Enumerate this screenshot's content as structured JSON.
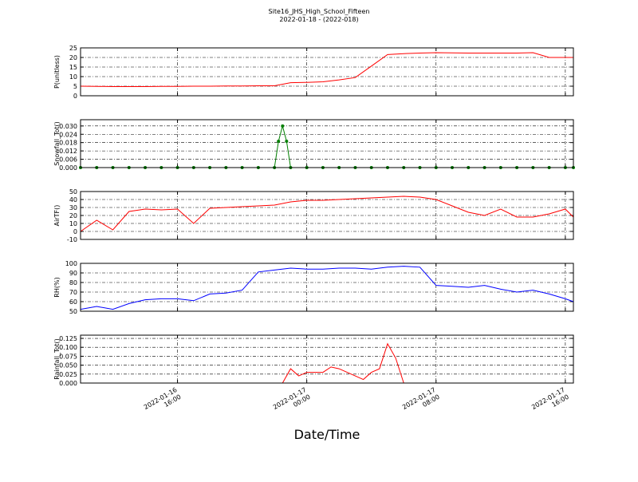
{
  "chart_data": [
    {
      "type": "line",
      "title": "Site16_JHS_High_School_Fifteen",
      "subtitle": "2022-01-18 - (2022-018)",
      "ylabel": "P(unitless)",
      "x": [
        "2022-01-16 10:00",
        "2022-01-16 11:00",
        "2022-01-16 12:00",
        "2022-01-16 13:00",
        "2022-01-16 14:00",
        "2022-01-16 15:00",
        "2022-01-16 16:00",
        "2022-01-16 17:00",
        "2022-01-16 18:00",
        "2022-01-16 19:00",
        "2022-01-16 20:00",
        "2022-01-16 21:00",
        "2022-01-16 22:00",
        "2022-01-16 23:00",
        "2022-01-17 00:00",
        "2022-01-17 01:00",
        "2022-01-17 02:00",
        "2022-01-17 03:00",
        "2022-01-17 04:00",
        "2022-01-17 05:00",
        "2022-01-17 06:00",
        "2022-01-17 07:00",
        "2022-01-17 08:00",
        "2022-01-17 09:00",
        "2022-01-17 10:00",
        "2022-01-17 11:00",
        "2022-01-17 12:00",
        "2022-01-17 13:00",
        "2022-01-17 14:00",
        "2022-01-17 15:00",
        "2022-01-17 16:00",
        "2022-01-17 16:30"
      ],
      "values": [
        5.0,
        4.9,
        4.8,
        4.8,
        4.8,
        4.9,
        4.9,
        5.0,
        5.0,
        5.1,
        5.1,
        5.2,
        5.2,
        6.8,
        7.0,
        7.3,
        8.3,
        9.5,
        15.5,
        21.5,
        22.0,
        22.3,
        22.5,
        22.4,
        22.3,
        22.3,
        22.3,
        22.3,
        22.5,
        20.0,
        20.0,
        20.0
      ],
      "color": "#ff0000",
      "ylim": [
        0,
        25
      ],
      "yticks": [
        0,
        5,
        10,
        15,
        20,
        25
      ],
      "xlim": [
        "2022-01-16 10:00",
        "2022-01-17 16:30"
      ],
      "xticks": [
        "2022-01-16 16:00",
        "2022-01-17 00:00",
        "2022-01-17 08:00",
        "2022-01-17 16:00"
      ],
      "grid": true
    },
    {
      "type": "line",
      "ylabel": "Snowfall_Tot()",
      "x": [
        "2022-01-16 10:00",
        "2022-01-16 11:00",
        "2022-01-16 12:00",
        "2022-01-16 13:00",
        "2022-01-16 14:00",
        "2022-01-16 15:00",
        "2022-01-16 16:00",
        "2022-01-16 17:00",
        "2022-01-16 18:00",
        "2022-01-16 19:00",
        "2022-01-16 20:00",
        "2022-01-16 21:00",
        "2022-01-16 22:00",
        "2022-01-16 22:15",
        "2022-01-16 22:30",
        "2022-01-16 22:45",
        "2022-01-16 23:00",
        "2022-01-17 00:00",
        "2022-01-17 01:00",
        "2022-01-17 02:00",
        "2022-01-17 03:00",
        "2022-01-17 04:00",
        "2022-01-17 05:00",
        "2022-01-17 06:00",
        "2022-01-17 07:00",
        "2022-01-17 08:00",
        "2022-01-17 09:00",
        "2022-01-17 10:00",
        "2022-01-17 11:00",
        "2022-01-17 12:00",
        "2022-01-17 13:00",
        "2022-01-17 14:00",
        "2022-01-17 15:00",
        "2022-01-17 16:00",
        "2022-01-17 16:30"
      ],
      "values": [
        0,
        0,
        0,
        0,
        0,
        0,
        0,
        0,
        0,
        0,
        0,
        0,
        0,
        0.019,
        0.03,
        0.019,
        0,
        0,
        0,
        0,
        0,
        0,
        0,
        0,
        0,
        0,
        0,
        0,
        0,
        0,
        0,
        0,
        0,
        0,
        0
      ],
      "color": "#007f00",
      "marker": true,
      "ylim": [
        0,
        0.0345
      ],
      "yticks": [
        {
          "value": 0,
          "label": "0.000"
        },
        {
          "value": 0.006,
          "label": "0.006"
        },
        {
          "value": 0.012,
          "label": "0.012"
        },
        {
          "value": 0.018,
          "label": "0.018"
        },
        {
          "value": 0.024,
          "label": "0.024"
        },
        {
          "value": 0.03,
          "label": "0.030"
        }
      ],
      "xlim": [
        "2022-01-16 10:00",
        "2022-01-17 16:30"
      ],
      "xticks": [
        "2022-01-16 16:00",
        "2022-01-17 00:00",
        "2022-01-17 08:00",
        "2022-01-17 16:00"
      ],
      "grid": true
    },
    {
      "type": "line",
      "ylabel": "AirTF()",
      "x": [
        "2022-01-16 10:00",
        "2022-01-16 11:00",
        "2022-01-16 12:00",
        "2022-01-16 13:00",
        "2022-01-16 14:00",
        "2022-01-16 15:00",
        "2022-01-16 16:00",
        "2022-01-16 17:00",
        "2022-01-16 18:00",
        "2022-01-16 19:00",
        "2022-01-16 20:00",
        "2022-01-16 21:00",
        "2022-01-16 22:00",
        "2022-01-16 23:00",
        "2022-01-17 00:00",
        "2022-01-17 01:00",
        "2022-01-17 02:00",
        "2022-01-17 03:00",
        "2022-01-17 04:00",
        "2022-01-17 05:00",
        "2022-01-17 06:00",
        "2022-01-17 07:00",
        "2022-01-17 08:00",
        "2022-01-17 09:00",
        "2022-01-17 10:00",
        "2022-01-17 11:00",
        "2022-01-17 12:00",
        "2022-01-17 13:00",
        "2022-01-17 14:00",
        "2022-01-17 15:00",
        "2022-01-17 16:00",
        "2022-01-17 16:30"
      ],
      "values": [
        0,
        14,
        2,
        25,
        28,
        27,
        28,
        10,
        29,
        30,
        31,
        32,
        33,
        37,
        39,
        39,
        40,
        41,
        42,
        43,
        44,
        43,
        40,
        32,
        24,
        20,
        28,
        18,
        18,
        22,
        28,
        18
      ],
      "color": "#ff0000",
      "ylim": [
        -10,
        50
      ],
      "yticks": [
        -10,
        0,
        10,
        20,
        30,
        40,
        50
      ],
      "xlim": [
        "2022-01-16 10:00",
        "2022-01-17 16:30"
      ],
      "xticks": [
        "2022-01-16 16:00",
        "2022-01-17 00:00",
        "2022-01-17 08:00",
        "2022-01-17 16:00"
      ],
      "grid": true
    },
    {
      "type": "line",
      "ylabel": "RH(%)",
      "x": [
        "2022-01-16 10:00",
        "2022-01-16 11:00",
        "2022-01-16 12:00",
        "2022-01-16 13:00",
        "2022-01-16 14:00",
        "2022-01-16 15:00",
        "2022-01-16 16:00",
        "2022-01-16 17:00",
        "2022-01-16 18:00",
        "2022-01-16 19:00",
        "2022-01-16 20:00",
        "2022-01-16 21:00",
        "2022-01-16 22:00",
        "2022-01-16 23:00",
        "2022-01-17 00:00",
        "2022-01-17 01:00",
        "2022-01-17 02:00",
        "2022-01-17 03:00",
        "2022-01-17 04:00",
        "2022-01-17 05:00",
        "2022-01-17 06:00",
        "2022-01-17 07:00",
        "2022-01-17 08:00",
        "2022-01-17 09:00",
        "2022-01-17 10:00",
        "2022-01-17 11:00",
        "2022-01-17 12:00",
        "2022-01-17 13:00",
        "2022-01-17 14:00",
        "2022-01-17 15:00",
        "2022-01-17 16:00",
        "2022-01-17 16:30"
      ],
      "values": [
        52,
        55,
        52,
        58,
        62,
        63,
        63,
        61,
        68,
        69,
        72,
        91,
        93,
        95,
        94,
        94,
        95,
        95,
        94,
        96,
        97,
        96,
        77,
        76,
        75,
        77,
        73,
        70,
        72,
        68,
        63,
        60
      ],
      "color": "#0000ff",
      "ylim": [
        50,
        100
      ],
      "yticks": [
        50,
        60,
        70,
        80,
        90,
        100
      ],
      "xlim": [
        "2022-01-16 10:00",
        "2022-01-17 16:30"
      ],
      "xticks": [
        "2022-01-16 16:00",
        "2022-01-17 00:00",
        "2022-01-17 08:00",
        "2022-01-17 16:00"
      ],
      "grid": true
    },
    {
      "type": "line",
      "ylabel": "Rainfall_Tot()",
      "xlabel": "Date/Time",
      "x": [
        "2022-01-16 10:00",
        "2022-01-16 11:00",
        "2022-01-16 12:00",
        "2022-01-16 13:00",
        "2022-01-16 14:00",
        "2022-01-16 15:00",
        "2022-01-16 16:00",
        "2022-01-16 17:00",
        "2022-01-16 18:00",
        "2022-01-16 19:00",
        "2022-01-16 20:00",
        "2022-01-16 21:00",
        "2022-01-16 22:00",
        "2022-01-16 22:30",
        "2022-01-16 23:00",
        "2022-01-16 23:30",
        "2022-01-17 00:00",
        "2022-01-17 00:30",
        "2022-01-17 01:00",
        "2022-01-17 01:30",
        "2022-01-17 02:00",
        "2022-01-17 02:30",
        "2022-01-17 03:00",
        "2022-01-17 03:30",
        "2022-01-17 04:00",
        "2022-01-17 04:30",
        "2022-01-17 05:00",
        "2022-01-17 05:30",
        "2022-01-17 06:00",
        "2022-01-17 07:00",
        "2022-01-17 08:00",
        "2022-01-17 09:00",
        "2022-01-17 10:00",
        "2022-01-17 11:00",
        "2022-01-17 12:00",
        "2022-01-17 13:00",
        "2022-01-17 14:00",
        "2022-01-17 15:00",
        "2022-01-17 16:00",
        "2022-01-17 16:30"
      ],
      "values": [
        0,
        0,
        0,
        0,
        0,
        0,
        0,
        0,
        0,
        0,
        0,
        0,
        0,
        0,
        0.04,
        0.02,
        0.03,
        0.03,
        0.03,
        0.045,
        0.04,
        0.03,
        0.02,
        0.01,
        0.03,
        0.04,
        0.11,
        0.07,
        0,
        0,
        0,
        0,
        0,
        0,
        0,
        0,
        0,
        0,
        0,
        0
      ],
      "color": "#ff0000",
      "ylim": [
        0,
        0.134
      ],
      "yticks": [
        {
          "value": 0,
          "label": "0.000"
        },
        {
          "value": 0.025,
          "label": "0.025"
        },
        {
          "value": 0.05,
          "label": "0.050"
        },
        {
          "value": 0.075,
          "label": "0.075"
        },
        {
          "value": 0.1,
          "label": "0.100"
        },
        {
          "value": 0.125,
          "label": "0.125"
        }
      ],
      "xlim": [
        "2022-01-16 10:00",
        "2022-01-17 16:30"
      ],
      "xticks": [
        "2022-01-16 16:00",
        "2022-01-17 00:00",
        "2022-01-17 08:00",
        "2022-01-17 16:00"
      ],
      "grid": true
    }
  ]
}
